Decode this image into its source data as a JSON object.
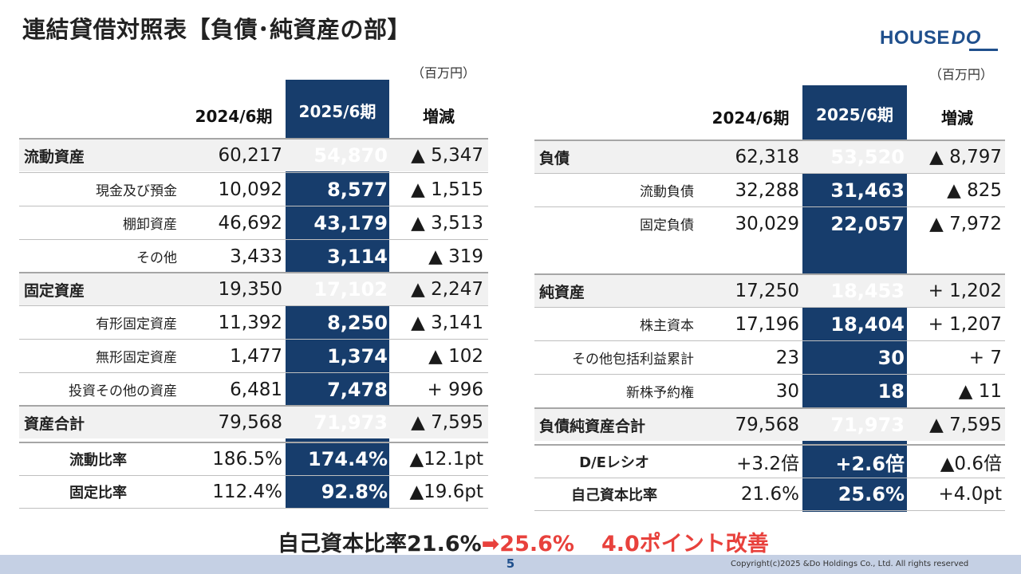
{
  "title": "連結貸借対照表【負債･純資産の部】",
  "logo": {
    "main": "HOUSE",
    "accent": "DO"
  },
  "units": {
    "left": "（百万円）",
    "right": "（百万円）"
  },
  "columns": {
    "prev": "2024/6期",
    "curr": "2025/6期",
    "change": "増減"
  },
  "left_table": {
    "rows": [
      {
        "label": "流動資産",
        "type": "major",
        "prev": "60,217",
        "curr": "54,870",
        "change": "▲ 5,347"
      },
      {
        "label": "現金及び預金",
        "type": "sub",
        "prev": "10,092",
        "curr": "8,577",
        "change": "▲ 1,515"
      },
      {
        "label": "棚卸資産",
        "type": "sub",
        "prev": "46,692",
        "curr": "43,179",
        "change": "▲ 3,513"
      },
      {
        "label": "その他",
        "type": "sub",
        "prev": "3,433",
        "curr": "3,114",
        "change": "▲ 319"
      },
      {
        "label": "固定資産",
        "type": "major",
        "prev": "19,350",
        "curr": "17,102",
        "change": "▲ 2,247"
      },
      {
        "label": "有形固定資産",
        "type": "sub",
        "prev": "11,392",
        "curr": "8,250",
        "change": "▲ 3,141"
      },
      {
        "label": "無形固定資産",
        "type": "sub",
        "prev": "1,477",
        "curr": "1,374",
        "change": "▲ 102"
      },
      {
        "label": "投資その他の資産",
        "type": "sub",
        "prev": "6,481",
        "curr": "7,478",
        "change": "+ 996"
      },
      {
        "label": "資産合計",
        "type": "major",
        "prev": "79,568",
        "curr": "71,973",
        "change": "▲ 7,595"
      }
    ],
    "ratios": [
      {
        "label": "流動比率",
        "prev": "186.5%",
        "curr": "174.4%",
        "change": "▲12.1pt"
      },
      {
        "label": "固定比率",
        "prev": "112.4%",
        "curr": "92.8%",
        "change": "▲19.6pt"
      }
    ]
  },
  "right_table": {
    "rows": [
      {
        "label": "負債",
        "type": "major",
        "prev": "62,318",
        "curr": "53,520",
        "change": "▲ 8,797"
      },
      {
        "label": "流動負債",
        "type": "sub",
        "prev": "32,288",
        "curr": "31,463",
        "change": "▲ 825"
      },
      {
        "label": "固定負債",
        "type": "sub",
        "prev": "30,029",
        "curr": "22,057",
        "change": "▲ 7,972"
      },
      {
        "label": "純資産",
        "type": "major",
        "prev": "17,250",
        "curr": "18,453",
        "change": "+ 1,202"
      },
      {
        "label": "株主資本",
        "type": "sub",
        "prev": "17,196",
        "curr": "18,404",
        "change": "+ 1,207"
      },
      {
        "label": "その他包括利益累計",
        "type": "sub",
        "prev": "23",
        "curr": "30",
        "change": "+ 7"
      },
      {
        "label": "新株予約権",
        "type": "sub",
        "prev": "30",
        "curr": "18",
        "change": "▲ 11"
      },
      {
        "label": "負債純資産合計",
        "type": "major",
        "prev": "79,568",
        "curr": "71,973",
        "change": "▲ 7,595"
      }
    ],
    "ratios": [
      {
        "label": "D/Eレシオ",
        "prev": "+3.2倍",
        "curr": "+2.6倍",
        "change": "▲0.6倍"
      },
      {
        "label": "自己資本比率",
        "prev": "21.6%",
        "curr": "25.6%",
        "change": "+4.0pt"
      }
    ]
  },
  "summary": {
    "prefix": "自己資本比率21.6%",
    "arrow": "➡",
    "value": "25.6%",
    "note": "4.0ポイント改善"
  },
  "footer": {
    "page": "5",
    "copyright": "Copyright(c)2025 &Do Holdings Co., Ltd. All rights reserved"
  },
  "colors": {
    "navy": "#173d6c",
    "accent_red": "#e8413c",
    "footer_bar": "#c5d0e4",
    "logo_blue": "#1f4f8c"
  }
}
